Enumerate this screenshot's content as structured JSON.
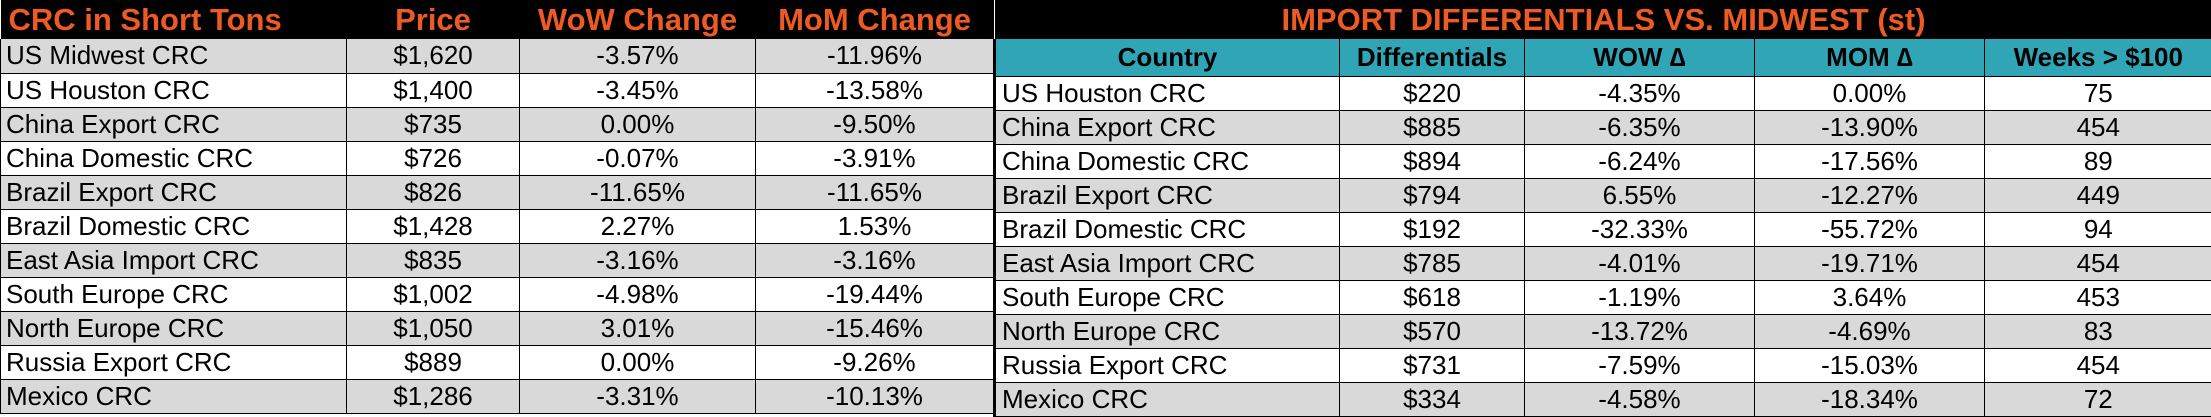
{
  "left": {
    "headers": [
      "CRC in Short Tons",
      "Price",
      "WoW Change",
      "MoM Change"
    ],
    "rows": [
      [
        "US Midwest CRC",
        "$1,620",
        "-3.57%",
        "-11.96%"
      ],
      [
        "US Houston CRC",
        "$1,400",
        "-3.45%",
        "-13.58%"
      ],
      [
        "China Export CRC",
        "$735",
        "0.00%",
        "-9.50%"
      ],
      [
        "China Domestic CRC",
        "$726",
        "-0.07%",
        "-3.91%"
      ],
      [
        "Brazil Export CRC",
        "$826",
        "-11.65%",
        "-11.65%"
      ],
      [
        "Brazil Domestic CRC",
        "$1,428",
        "2.27%",
        "1.53%"
      ],
      [
        "East Asia Import CRC",
        "$835",
        "-3.16%",
        "-3.16%"
      ],
      [
        "South Europe CRC",
        "$1,002",
        "-4.98%",
        "-19.44%"
      ],
      [
        "North Europe CRC",
        "$1,050",
        "3.01%",
        "-15.46%"
      ],
      [
        "Russia Export CRC",
        "$889",
        "0.00%",
        "-9.26%"
      ],
      [
        "Mexico CRC",
        "$1,286",
        "-3.31%",
        "-10.13%"
      ]
    ]
  },
  "right": {
    "title": "IMPORT DIFFERENTIALS VS. MIDWEST (st)",
    "headers": [
      "Country",
      "Differentials",
      "WOW ∆",
      "MOM ∆",
      "Weeks > $100"
    ],
    "rows": [
      [
        "US Houston CRC",
        "$220",
        "-4.35%",
        "0.00%",
        "75"
      ],
      [
        "China Export CRC",
        "$885",
        "-6.35%",
        "-13.90%",
        "454"
      ],
      [
        "China Domestic CRC",
        "$894",
        "-6.24%",
        "-17.56%",
        "89"
      ],
      [
        "Brazil Export CRC",
        "$794",
        "6.55%",
        "-12.27%",
        "449"
      ],
      [
        "Brazil Domestic CRC",
        "$192",
        "-32.33%",
        "-55.72%",
        "94"
      ],
      [
        "East Asia Import CRC",
        "$785",
        "-4.01%",
        "-19.71%",
        "454"
      ],
      [
        "South Europe CRC",
        "$618",
        "-1.19%",
        "3.64%",
        "453"
      ],
      [
        "North Europe CRC",
        "$570",
        "-13.72%",
        "-4.69%",
        "83"
      ],
      [
        "Russia Export CRC",
        "$731",
        "-7.59%",
        "-15.03%",
        "454"
      ],
      [
        "Mexico CRC",
        "$334",
        "-4.58%",
        "-18.34%",
        "72"
      ]
    ]
  },
  "colors": {
    "title_bg": "#000000",
    "title_text": "#ee5a24",
    "header_bg": "#2fa5b5",
    "row_shade": "#d9d9d9"
  }
}
